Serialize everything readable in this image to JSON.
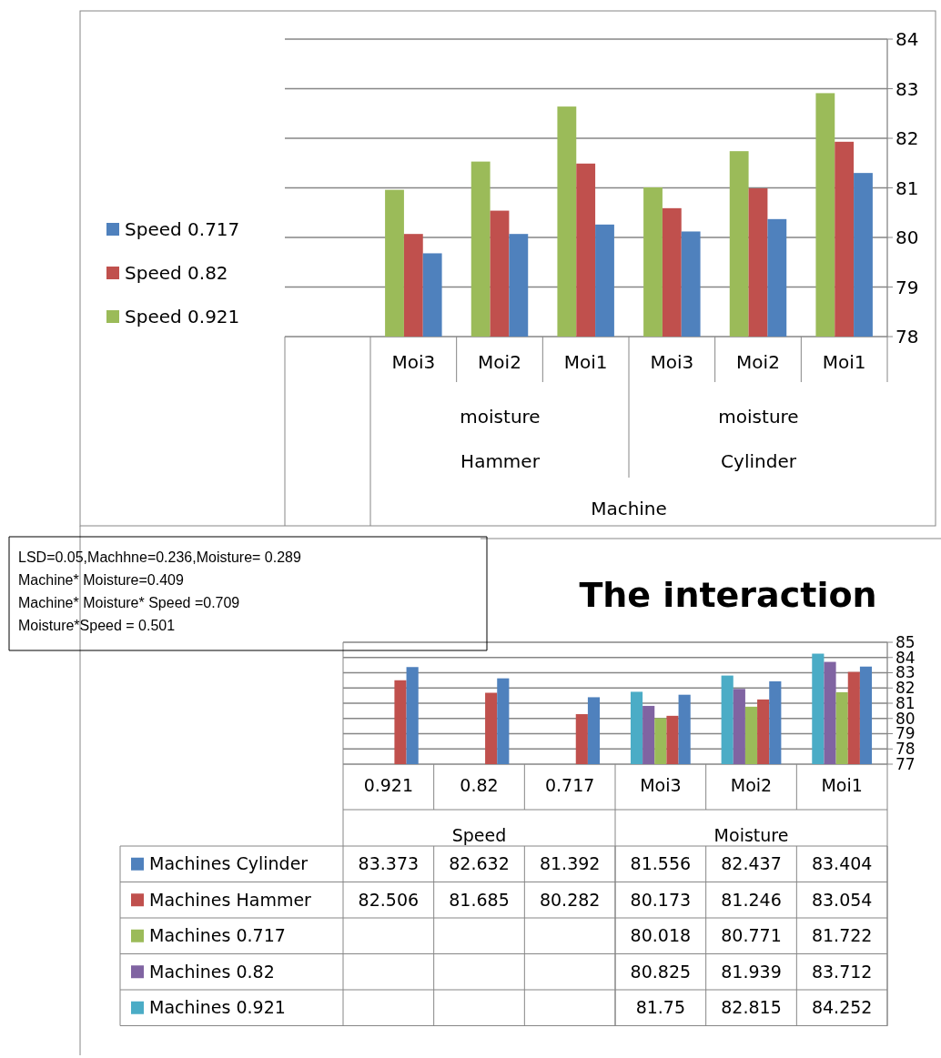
{
  "chart_data": [
    {
      "type": "bar",
      "categories": [
        "Moi3",
        "Moi2",
        "Moi1",
        "Moi3",
        "Moi2",
        "Moi1"
      ],
      "xlabel": "Machine",
      "annotations": [
        "moisture",
        "moisture",
        "Hammer",
        "Cylinder"
      ],
      "series": [
        {
          "name": "Speed 0.921",
          "color": "#9bbb59",
          "values": [
            80.96,
            81.53,
            82.64,
            81.01,
            81.74,
            82.91
          ]
        },
        {
          "name": "Speed 0.82",
          "color": "#c0504d",
          "values": [
            80.07,
            80.54,
            81.49,
            80.59,
            80.99,
            81.93
          ]
        },
        {
          "name": "Speed 0.717",
          "color": "#4f81bd",
          "values": [
            79.68,
            80.07,
            80.26,
            80.12,
            80.37,
            81.3
          ]
        }
      ],
      "ylim": [
        78,
        84
      ],
      "yticks": [
        78,
        79,
        80,
        81,
        82,
        83,
        84
      ],
      "grid": "y",
      "legend": "left"
    },
    {
      "type": "bar",
      "title": "The interaction",
      "categories": [
        "0.921",
        "0.82",
        "0.717",
        "Moi3",
        "Moi2",
        "Moi1"
      ],
      "annotations": [
        "Speed",
        "Moisture",
        "LSD=0.05,Machhne=0.236,Moisture= 0.289",
        "Machine* Moisture=0.409",
        "Machine* Moisture* Speed =0.709",
        "Moisture*Speed = 0.501"
      ],
      "series": [
        {
          "name": "Machines 0.921",
          "color": "#4bacc6",
          "values": [
            null,
            null,
            null,
            81.75,
            82.815,
            84.252
          ]
        },
        {
          "name": "Machines 0.82",
          "color": "#8064a2",
          "values": [
            null,
            null,
            null,
            80.825,
            81.939,
            83.712
          ]
        },
        {
          "name": "Machines 0.717",
          "color": "#9bbb59",
          "values": [
            null,
            null,
            null,
            80.018,
            80.771,
            81.722
          ]
        },
        {
          "name": "Machines Hammer",
          "color": "#c0504d",
          "values": [
            82.506,
            81.685,
            80.282,
            80.173,
            81.246,
            83.054
          ]
        },
        {
          "name": "Machines Cylinder",
          "color": "#4f81bd",
          "values": [
            83.373,
            82.632,
            81.392,
            81.556,
            82.437,
            83.404
          ]
        }
      ],
      "ylim": [
        77,
        85
      ],
      "yticks": [
        77,
        78,
        79,
        80,
        81,
        82,
        83,
        84,
        85
      ],
      "grid": "y",
      "legend": "bottom",
      "data_labels": true
    }
  ]
}
